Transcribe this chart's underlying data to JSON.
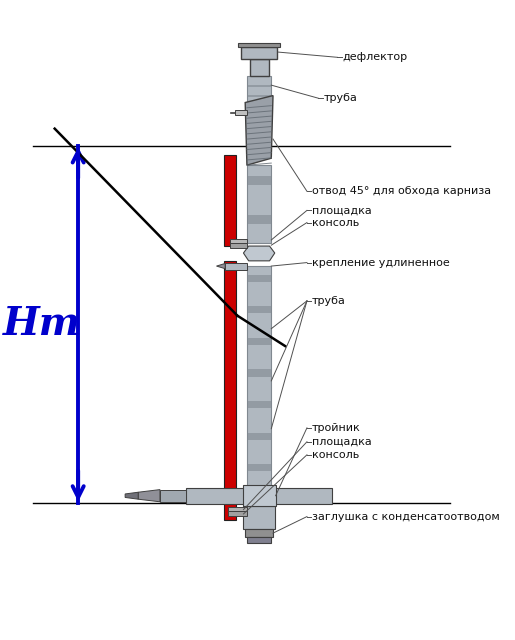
{
  "bg_color": "#ffffff",
  "labels": {
    "deflector": "дефлектор",
    "truba_top": "труба",
    "otvod": "отвод 45° для обхода карниза",
    "ploschadka_top": "площадка",
    "konsol_top": "консоль",
    "kreplenie": "крепление удлиненное",
    "truba_mid": "труба",
    "troiynik": "тройник",
    "ploschadka_bot": "площадка",
    "konsol_bot": "консоль",
    "zaglushka": "заглушка с конденсатоотводом",
    "ht": "Нт"
  },
  "colors": {
    "wall_red": "#cc0000",
    "pipe_gray": "#b0b8c0",
    "pipe_dark": "#808890",
    "pipe_light": "#d0d8e0",
    "line_color": "#404040",
    "arrow_blue": "#0000cc",
    "label_line": "#808080",
    "roof_line": "#000000",
    "horizontal_line": "#000000"
  },
  "dims": {
    "fig_w": 5.15,
    "fig_h": 6.4,
    "dpi": 100
  }
}
